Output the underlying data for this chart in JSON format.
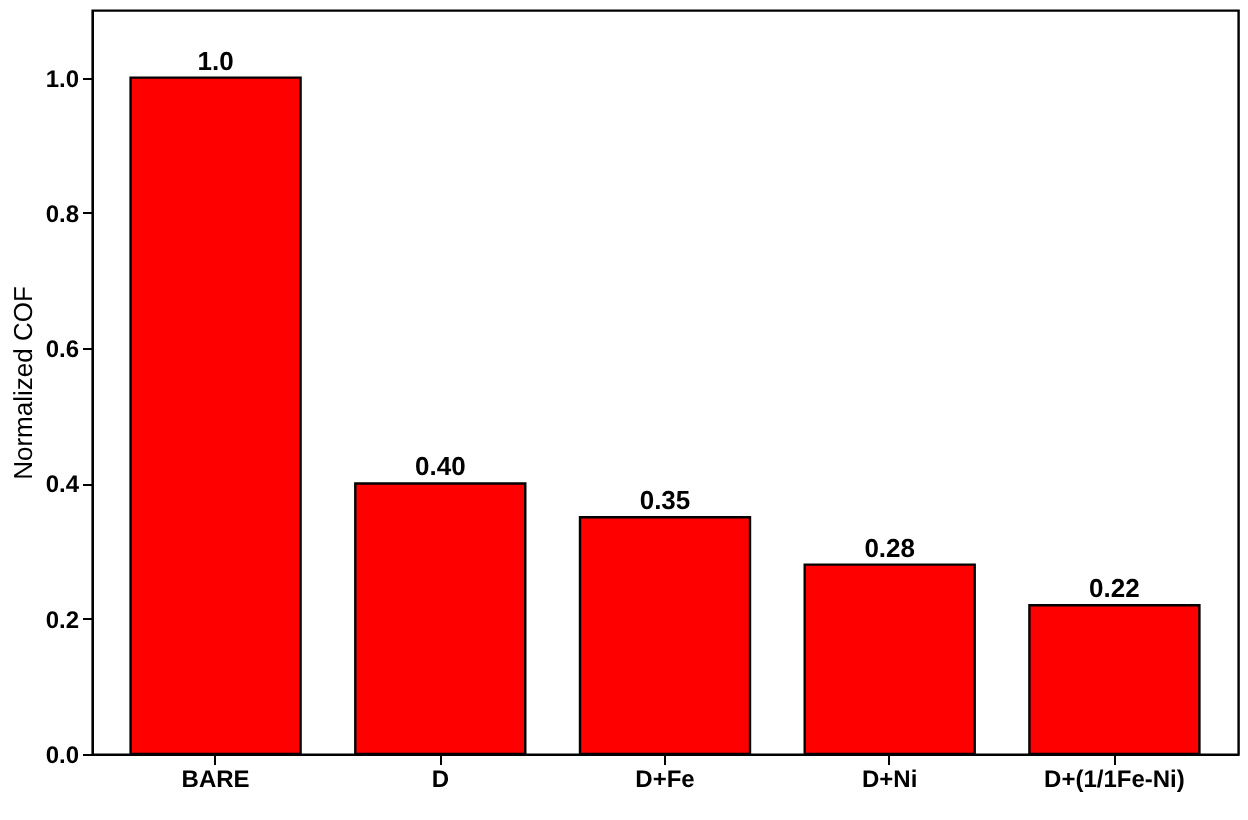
{
  "chart_data": {
    "type": "bar",
    "ylabel": "Normalized COF",
    "categories": [
      "BARE",
      "D",
      "D+Fe",
      "D+Ni",
      "D+(1/1Fe-Ni)"
    ],
    "values": [
      1.0,
      0.4,
      0.35,
      0.28,
      0.22
    ],
    "value_labels": [
      "1.0",
      "0.40",
      "0.35",
      "0.28",
      "0.22"
    ],
    "color": "#ff0000",
    "ylim": [
      0,
      1.1
    ],
    "yticks": [
      {
        "value": 0,
        "label": "0.0"
      },
      {
        "value": 0.2,
        "label": "0.2"
      },
      {
        "value": 0.4,
        "label": "0.4"
      },
      {
        "value": 0.6,
        "label": "0.6"
      },
      {
        "value": 0.8,
        "label": "0.8"
      },
      {
        "value": 1.0,
        "label": "1.0"
      }
    ],
    "grid": false
  }
}
